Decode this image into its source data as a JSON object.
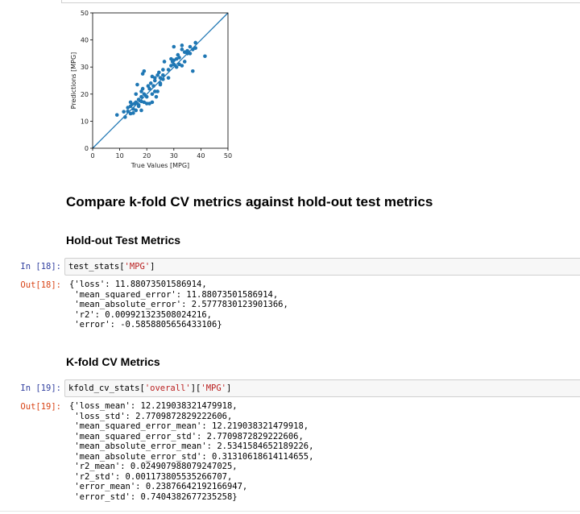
{
  "chart_data": {
    "type": "scatter",
    "xlabel": "True Values [MPG]",
    "ylabel": "Predictions [MPG]",
    "xlim": [
      0,
      50
    ],
    "ylim": [
      0,
      50
    ],
    "xticks": [
      "0",
      "10",
      "20",
      "30",
      "40",
      "50"
    ],
    "yticks": [
      "0",
      "10",
      "20",
      "30",
      "40",
      "50"
    ],
    "diagonal_line": [
      [
        0,
        0
      ],
      [
        50,
        50
      ]
    ],
    "points": [
      [
        9,
        12.3
      ],
      [
        11.5,
        13.5
      ],
      [
        12,
        11.5
      ],
      [
        13,
        13.6
      ],
      [
        13,
        15
      ],
      [
        14,
        12.8
      ],
      [
        14,
        15.5
      ],
      [
        14,
        17
      ],
      [
        14.5,
        16.2
      ],
      [
        15,
        13
      ],
      [
        15,
        14.5
      ],
      [
        15.5,
        16.5
      ],
      [
        16,
        17
      ],
      [
        16,
        20
      ],
      [
        16,
        14
      ],
      [
        16.5,
        23.5
      ],
      [
        17,
        16
      ],
      [
        17,
        18
      ],
      [
        17,
        15.5
      ],
      [
        18,
        17.3
      ],
      [
        18,
        19
      ],
      [
        18,
        21
      ],
      [
        18,
        14
      ],
      [
        18.5,
        22
      ],
      [
        18.5,
        27.5
      ],
      [
        19,
        20
      ],
      [
        19,
        28.5
      ],
      [
        19,
        17
      ],
      [
        20,
        16.5
      ],
      [
        20,
        19
      ],
      [
        20.5,
        23
      ],
      [
        21,
        22
      ],
      [
        21,
        16.5
      ],
      [
        21.5,
        24
      ],
      [
        22,
        17
      ],
      [
        22,
        26.5
      ],
      [
        22,
        20
      ],
      [
        22.5,
        23
      ],
      [
        23,
        25
      ],
      [
        23,
        21
      ],
      [
        23,
        26
      ],
      [
        23.5,
        19
      ],
      [
        24,
        27
      ],
      [
        24,
        21
      ],
      [
        24.5,
        28
      ],
      [
        25,
        24
      ],
      [
        25,
        26
      ],
      [
        25,
        23.5
      ],
      [
        26,
        25.5
      ],
      [
        26,
        29
      ],
      [
        26,
        27
      ],
      [
        26.5,
        32
      ],
      [
        28,
        26
      ],
      [
        28,
        29
      ],
      [
        29,
        30.5
      ],
      [
        29,
        33
      ],
      [
        29.5,
        32
      ],
      [
        30,
        31
      ],
      [
        30,
        32.5
      ],
      [
        30,
        37.5
      ],
      [
        31,
        30
      ],
      [
        31,
        33
      ],
      [
        31.5,
        34.5
      ],
      [
        32,
        31
      ],
      [
        32,
        33.5
      ],
      [
        33,
        30.5
      ],
      [
        33,
        36.5
      ],
      [
        33,
        38
      ],
      [
        34,
        35.5
      ],
      [
        34,
        32
      ],
      [
        35,
        35
      ],
      [
        35,
        36
      ],
      [
        36,
        37.5
      ],
      [
        36,
        35
      ],
      [
        37,
        36.5
      ],
      [
        37,
        28.5
      ],
      [
        38,
        39
      ],
      [
        38,
        37
      ],
      [
        41.5,
        34
      ]
    ]
  },
  "headings": {
    "compare": "Compare k-fold CV metrics against hold-out test metrics",
    "holdout": "Hold-out Test Metrics",
    "kfold": "K-fold CV Metrics"
  },
  "cells": [
    {
      "in_prompt": "In [18]:",
      "code_prefix": "test_stats[",
      "code_string": "'MPG'",
      "code_suffix": "]",
      "out_prompt": "Out[18]:",
      "output": "{'loss': 11.88073501586914,\n 'mean_squared_error': 11.88073501586914,\n 'mean_absolute_error': 2.5777830123901366,\n 'r2': 0.009921323508024216,\n 'error': -0.5858805656433106}"
    },
    {
      "in_prompt": "In [19]:",
      "code_prefix": "kfold_cv_stats[",
      "code_string": "'overall'",
      "code_mid": "][",
      "code_string2": "'MPG'",
      "code_suffix": "]",
      "out_prompt": "Out[19]:",
      "output": "{'loss_mean': 12.219038321479918,\n 'loss_std': 2.7709872829222606,\n 'mean_squared_error_mean': 12.219038321479918,\n 'mean_squared_error_std': 2.7709872829222606,\n 'mean_absolute_error_mean': 2.5341584652189226,\n 'mean_absolute_error_std': 0.31310618614114655,\n 'r2_mean': 0.024907988079247025,\n 'r2_std': 0.001173805535266707,\n 'error_mean': 0.23876642192166947,\n 'error_std': 0.7404382677235258}"
    }
  ],
  "colors": {
    "point": "#1f77b4",
    "line": "#1f77b4",
    "in_prompt": "#303f9f",
    "out_prompt": "#d84315",
    "string": "#ba2121"
  }
}
